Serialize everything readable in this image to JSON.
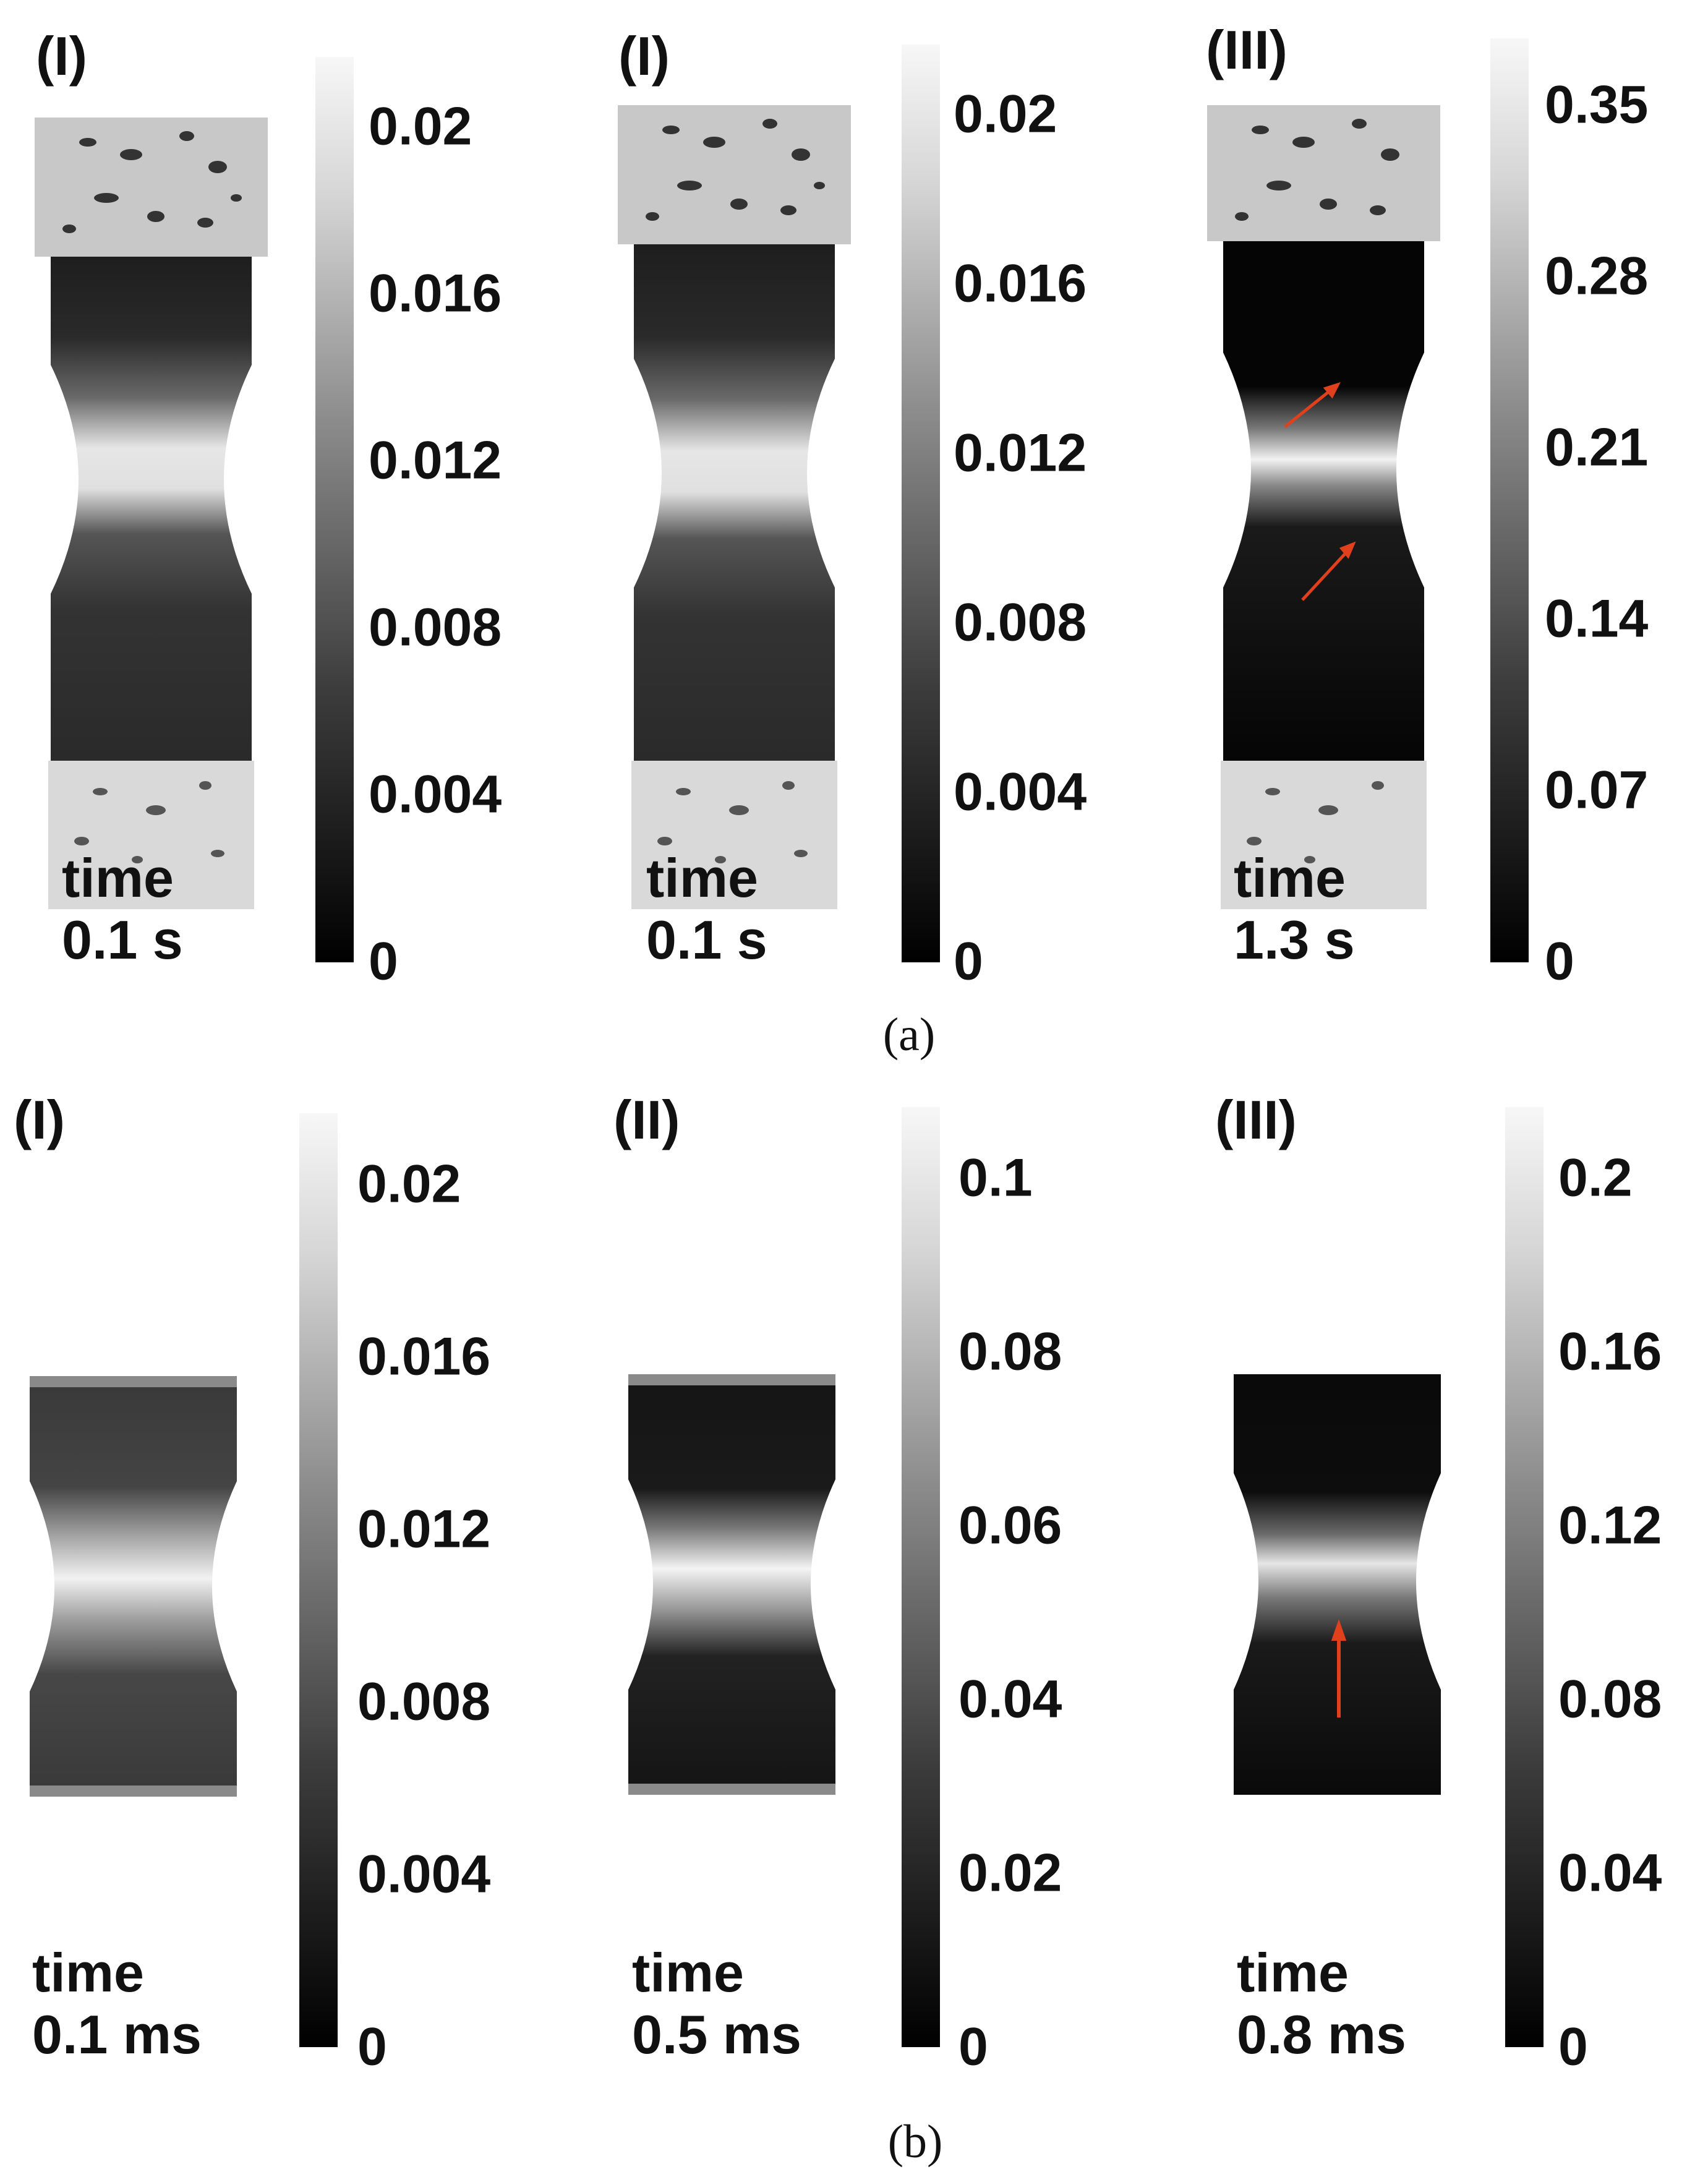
{
  "figure_a": {
    "caption": "(a)",
    "panels": [
      {
        "label": "(I)",
        "time_word": "time",
        "time_value": "0.1 s",
        "ticks": [
          "0.02",
          "0.016",
          "0.012",
          "0.008",
          "0.004",
          "0"
        ]
      },
      {
        "label": "(I)",
        "time_word": "time",
        "time_value": "0.1 s",
        "ticks": [
          "0.02",
          "0.016",
          "0.012",
          "0.008",
          "0.004",
          "0"
        ]
      },
      {
        "label": "(III)",
        "time_word": "time",
        "time_value": "1.3 s",
        "ticks": [
          "0.35",
          "0.28",
          "0.21",
          "0.14",
          "0.07",
          "0"
        ]
      }
    ]
  },
  "figure_b": {
    "caption": "(b)",
    "panels": [
      {
        "label": "(I)",
        "time_word": "time",
        "time_value": "0.1 ms",
        "ticks": [
          "0.02",
          "0.016",
          "0.012",
          "0.008",
          "0.004",
          "0"
        ]
      },
      {
        "label": "(II)",
        "time_word": "time",
        "time_value": "0.5 ms",
        "ticks": [
          "0.1",
          "0.08",
          "0.06",
          "0.04",
          "0.02",
          "0"
        ]
      },
      {
        "label": "(III)",
        "time_word": "time",
        "time_value": "0.8 ms",
        "ticks": [
          "0.2",
          "0.16",
          "0.12",
          "0.08",
          "0.04",
          "0"
        ]
      }
    ]
  },
  "colors": {
    "arrow": "#e0401c",
    "pattern_light": "#c8c8c8",
    "strain_high": "#f4f4f4",
    "strain_low": "#0a0a0a"
  }
}
